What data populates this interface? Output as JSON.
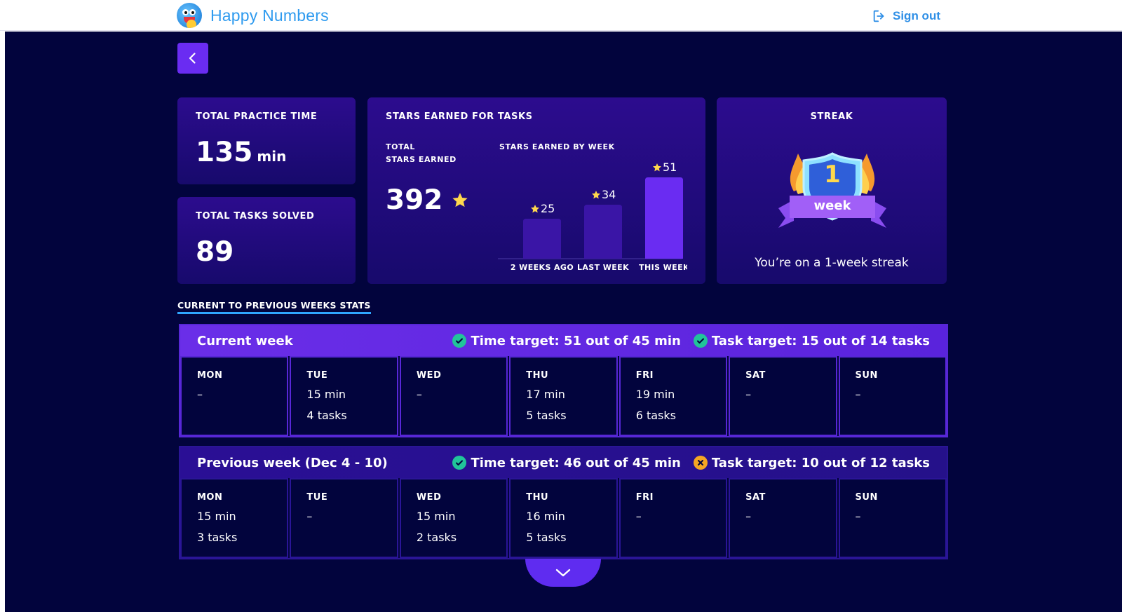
{
  "app": {
    "name": "Happy Numbers",
    "sign_out": "Sign out"
  },
  "colors": {
    "accent": "#6a2cf2",
    "background": "#02043d",
    "brand_blue": "#2f9bef",
    "success": "#21c49a",
    "warning": "#f5a623",
    "star": "#ffd84d"
  },
  "practice": {
    "label": "TOTAL PRACTICE TIME",
    "value": "135",
    "unit": "min"
  },
  "tasks": {
    "label": "TOTAL TASKS SOLVED",
    "value": "89"
  },
  "stars": {
    "label": "STARS EARNED FOR TASKS",
    "total_label_1": "TOTAL",
    "total_label_2": "STARS EARNED",
    "total_value": "392",
    "by_week_label": "STARS EARNED BY WEEK"
  },
  "chart_data": {
    "type": "bar",
    "title": "STARS EARNED BY WEEK",
    "categories": [
      "2 WEEKS AGO",
      "LAST WEEK",
      "THIS WEEK"
    ],
    "values": [
      25,
      34,
      51
    ],
    "ylim": [
      0,
      51
    ],
    "colors": [
      "#3a15a6",
      "#3a15a6",
      "#6a2cf2"
    ]
  },
  "streak": {
    "label": "STREAK",
    "badge_number": "1",
    "badge_text": "week",
    "message": "You’re on a 1-week streak"
  },
  "section_link": "CURRENT TO PREVIOUS WEEKS STATS",
  "weeks": [
    {
      "title": "Current week",
      "time_target": "Time target: 51 out of 45 min",
      "time_ok": true,
      "task_target": "Task target: 15 out of 14 tasks",
      "task_ok": true,
      "days": [
        {
          "name": "MON",
          "line1": "–",
          "line2": ""
        },
        {
          "name": "TUE",
          "line1": "15 min",
          "line2": "4 tasks"
        },
        {
          "name": "WED",
          "line1": "–",
          "line2": ""
        },
        {
          "name": "THU",
          "line1": "17 min",
          "line2": "5 tasks"
        },
        {
          "name": "FRI",
          "line1": "19 min",
          "line2": "6 tasks"
        },
        {
          "name": "SAT",
          "line1": "–",
          "line2": ""
        },
        {
          "name": "SUN",
          "line1": "–",
          "line2": ""
        }
      ]
    },
    {
      "title": "Previous week (Dec 4 - 10)",
      "time_target": "Time target: 46 out of 45 min",
      "time_ok": true,
      "task_target": "Task target: 10 out of 12 tasks",
      "task_ok": false,
      "days": [
        {
          "name": "MON",
          "line1": "15 min",
          "line2": "3 tasks"
        },
        {
          "name": "TUE",
          "line1": "–",
          "line2": ""
        },
        {
          "name": "WED",
          "line1": "15 min",
          "line2": "2 tasks"
        },
        {
          "name": "THU",
          "line1": "16 min",
          "line2": "5 tasks"
        },
        {
          "name": "FRI",
          "line1": "–",
          "line2": ""
        },
        {
          "name": "SAT",
          "line1": "–",
          "line2": ""
        },
        {
          "name": "SUN",
          "line1": "–",
          "line2": ""
        }
      ]
    }
  ],
  "icons": {
    "back": "chevron-left-icon",
    "expand": "chevron-down-icon",
    "sign_out": "sign-out-icon"
  }
}
